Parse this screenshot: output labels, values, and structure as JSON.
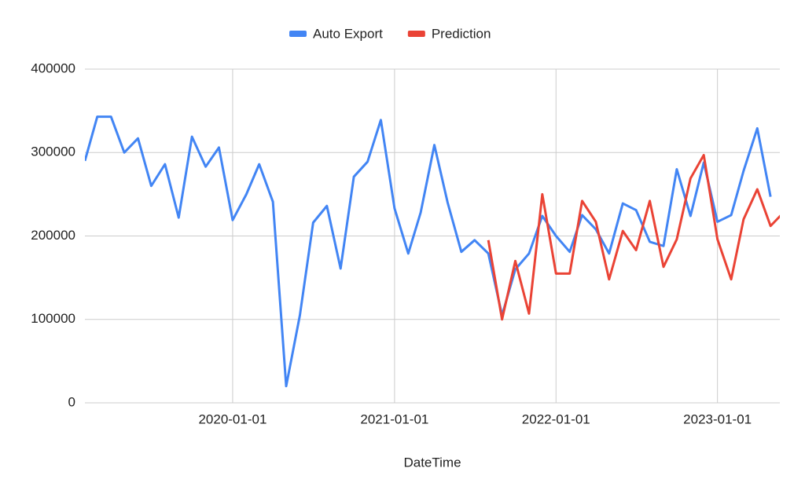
{
  "chart_data": {
    "type": "line",
    "x_label": "DateTime",
    "x": [
      "2019-02-01",
      "2019-03-01",
      "2019-04-01",
      "2019-05-01",
      "2019-06-01",
      "2019-07-01",
      "2019-08-01",
      "2019-09-01",
      "2019-10-01",
      "2019-11-01",
      "2019-12-01",
      "2020-01-01",
      "2020-02-01",
      "2020-03-01",
      "2020-04-01",
      "2020-05-01",
      "2020-06-01",
      "2020-07-01",
      "2020-08-01",
      "2020-09-01",
      "2020-10-01",
      "2020-11-01",
      "2020-12-01",
      "2021-01-01",
      "2021-02-01",
      "2021-03-01",
      "2021-04-01",
      "2021-05-01",
      "2021-06-01",
      "2021-07-01",
      "2021-08-01",
      "2021-09-01",
      "2021-10-01",
      "2021-11-01",
      "2021-12-01",
      "2022-01-01",
      "2022-02-01",
      "2022-03-01",
      "2022-04-01",
      "2022-05-01",
      "2022-06-01",
      "2022-07-01",
      "2022-08-01",
      "2022-09-01",
      "2022-10-01",
      "2022-11-01",
      "2022-12-01",
      "2023-01-01",
      "2023-02-01",
      "2023-03-01",
      "2023-04-01",
      "2023-05-01",
      "2023-06-01"
    ],
    "series": [
      {
        "name": "Auto Export",
        "color": "#4285f4",
        "values": [
          290000,
          343000,
          343000,
          300000,
          317000,
          260000,
          286000,
          222000,
          319000,
          283000,
          306000,
          219000,
          250000,
          286000,
          241000,
          20000,
          105000,
          216000,
          236000,
          161000,
          271000,
          289000,
          339000,
          233000,
          179000,
          228000,
          309000,
          240000,
          181000,
          195000,
          179000,
          105000,
          160000,
          179000,
          224000,
          200000,
          181000,
          225000,
          208000,
          179000,
          239000,
          231000,
          193000,
          188000,
          280000,
          224000,
          288000,
          217000,
          225000,
          278000,
          329000,
          247000,
          null
        ]
      },
      {
        "name": "Prediction",
        "color": "#ea4335",
        "values": [
          null,
          null,
          null,
          null,
          null,
          null,
          null,
          null,
          null,
          null,
          null,
          null,
          null,
          null,
          null,
          null,
          null,
          null,
          null,
          null,
          null,
          null,
          null,
          null,
          null,
          null,
          null,
          null,
          null,
          null,
          195000,
          100000,
          170000,
          107000,
          250000,
          155000,
          155000,
          242000,
          217000,
          148000,
          206000,
          183000,
          242000,
          163000,
          196000,
          269000,
          297000,
          196000,
          148000,
          220000,
          256000,
          212000,
          229000
        ]
      }
    ],
    "xlim": [
      "2019-02-01",
      "2023-05-22"
    ],
    "xticks": [
      "2020-01-01",
      "2021-01-01",
      "2022-01-01",
      "2023-01-01"
    ],
    "ylim": [
      0,
      400000
    ],
    "yticks": [
      0,
      100000,
      200000,
      300000,
      400000
    ],
    "grid": true,
    "legend": "top"
  }
}
